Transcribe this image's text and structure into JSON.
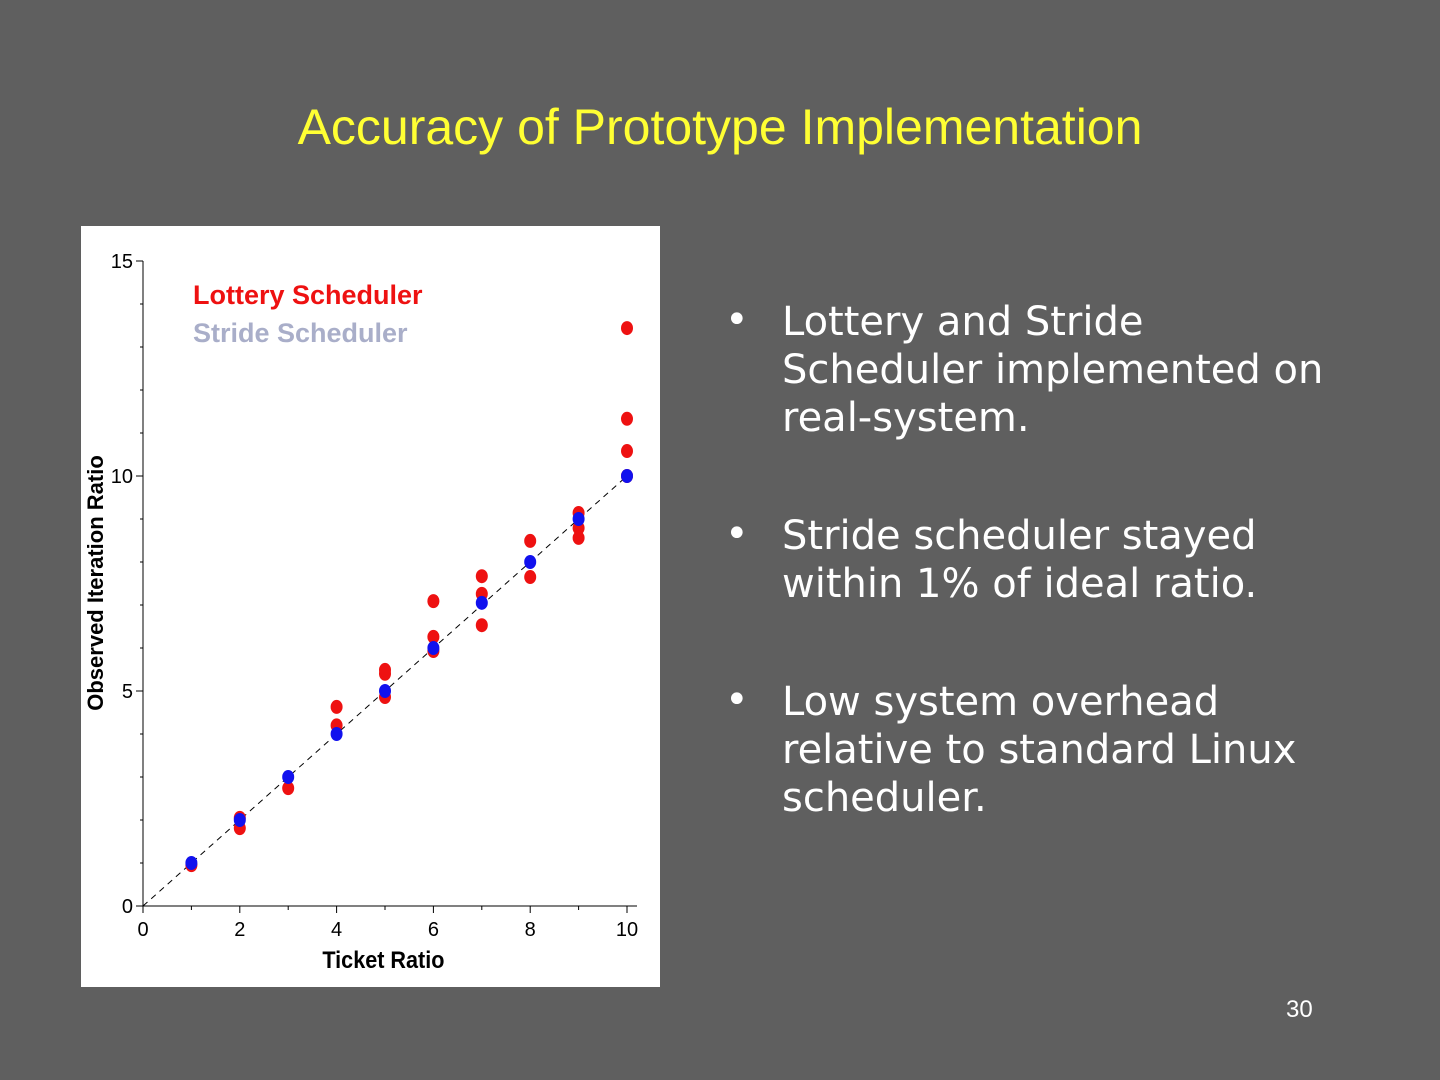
{
  "slide": {
    "title": "Accuracy of Prototype Implementation",
    "bullets": [
      "Lottery and Stride Scheduler implemented on real-system.",
      "Stride scheduler stayed within 1% of ideal ratio.",
      "Low system overhead relative to standard Linux scheduler."
    ],
    "bullet_marker": "•",
    "page_number": "30"
  },
  "chart_data": {
    "type": "scatter",
    "title": "",
    "xlabel": "Ticket Ratio",
    "ylabel": "Observed Iteration Ratio",
    "xlim": [
      0,
      10
    ],
    "ylim": [
      0,
      15
    ],
    "xticks": [
      "0",
      "2",
      "4",
      "6",
      "8",
      "10"
    ],
    "yticks": [
      "0",
      "5",
      "10",
      "15"
    ],
    "grid": false,
    "legend_placement": "top-left",
    "reference_line": {
      "style": "dashed",
      "from": [
        0,
        0
      ],
      "to": [
        10,
        10
      ]
    },
    "series": [
      {
        "name": "Lottery Scheduler",
        "color": "#ee1111",
        "legend_color": "#ee1111",
        "points": [
          [
            1,
            0.95
          ],
          [
            2,
            1.81
          ],
          [
            2,
            2.05
          ],
          [
            3,
            2.74
          ],
          [
            4,
            4.63
          ],
          [
            4,
            4.2
          ],
          [
            5,
            4.86
          ],
          [
            5,
            5.4
          ],
          [
            5,
            5.49
          ],
          [
            6,
            7.09
          ],
          [
            6,
            6.26
          ],
          [
            6,
            5.93
          ],
          [
            7,
            7.67
          ],
          [
            7,
            7.26
          ],
          [
            7,
            6.53
          ],
          [
            8,
            8.49
          ],
          [
            8,
            7.65
          ],
          [
            9,
            9.14
          ],
          [
            9,
            8.79
          ],
          [
            9,
            8.56
          ],
          [
            10,
            13.44
          ],
          [
            10,
            11.33
          ],
          [
            10,
            10.58
          ],
          [
            10,
            10.0
          ]
        ]
      },
      {
        "name": "Stride Scheduler",
        "color": "#1111ee",
        "legend_color": "#a9aec9",
        "points": [
          [
            1,
            1.0
          ],
          [
            2,
            2.0
          ],
          [
            3,
            3.0
          ],
          [
            4,
            4.0
          ],
          [
            5,
            5.0
          ],
          [
            6,
            6.0
          ],
          [
            7,
            7.05
          ],
          [
            8,
            8.0
          ],
          [
            9,
            9.0
          ],
          [
            10,
            10.0
          ]
        ]
      }
    ]
  }
}
